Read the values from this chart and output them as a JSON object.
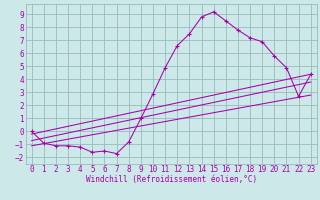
{
  "background_color": "#cce8e8",
  "grid_color": "#99bbbb",
  "line_color": "#aa00aa",
  "marker_color": "#aa00aa",
  "xlabel": "Windchill (Refroidissement éolien,°C)",
  "xlabel_fontsize": 5.5,
  "tick_fontsize": 5.5,
  "xlim": [
    -0.5,
    23.5
  ],
  "ylim": [
    -2.5,
    9.8
  ],
  "xticks": [
    0,
    1,
    2,
    3,
    4,
    5,
    6,
    7,
    8,
    9,
    10,
    11,
    12,
    13,
    14,
    15,
    16,
    17,
    18,
    19,
    20,
    21,
    22,
    23
  ],
  "yticks": [
    -2,
    -1,
    0,
    1,
    2,
    3,
    4,
    5,
    6,
    7,
    8,
    9
  ],
  "curve1_x": [
    0,
    1,
    2,
    3,
    4,
    5,
    6,
    7,
    8,
    9,
    10,
    11,
    12,
    13,
    14,
    15,
    16,
    17,
    18,
    19,
    20,
    21,
    22,
    23
  ],
  "curve1_y": [
    0.0,
    -0.9,
    -1.1,
    -1.1,
    -1.2,
    -1.6,
    -1.5,
    -1.7,
    -0.8,
    1.0,
    2.9,
    4.9,
    6.6,
    7.5,
    8.8,
    9.2,
    8.5,
    7.8,
    7.2,
    6.9,
    5.8,
    4.9,
    2.7,
    4.4
  ],
  "line1_x": [
    0,
    23
  ],
  "line1_y": [
    -0.2,
    4.4
  ],
  "line2_x": [
    0,
    23
  ],
  "line2_y": [
    -0.7,
    3.8
  ],
  "line3_x": [
    0,
    23
  ],
  "line3_y": [
    -1.1,
    2.8
  ]
}
